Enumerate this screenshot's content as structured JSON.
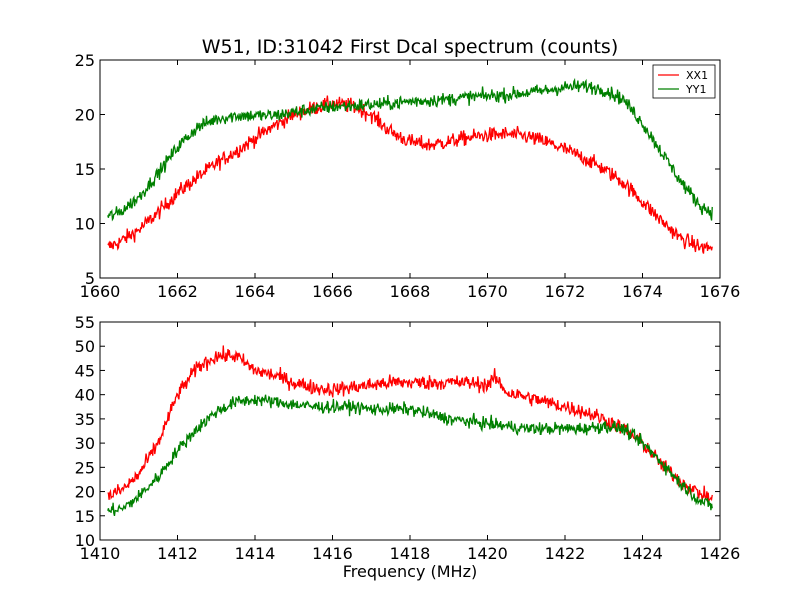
{
  "figure": {
    "title": "W51, ID:31042 First Dcal spectrum (counts)",
    "background": "#ffffff"
  },
  "chart_data": [
    {
      "type": "line",
      "title": "W51, ID:31042 First Dcal spectrum (counts)",
      "xlabel": "",
      "ylabel": "",
      "xlim": [
        1660,
        1676
      ],
      "ylim": [
        5,
        25
      ],
      "xticks": [
        "1660",
        "1662",
        "1664",
        "1666",
        "1668",
        "1670",
        "1672",
        "1674",
        "1676"
      ],
      "yticks": [
        "5",
        "10",
        "15",
        "20",
        "25"
      ],
      "grid": false,
      "legend": {
        "placement": "top-right",
        "entries": [
          "XX1",
          "YY1"
        ]
      },
      "series": [
        {
          "name": "XX1",
          "color": "#ff0000",
          "noise": 0.9,
          "x": [
            1660.2,
            1660.5,
            1661.0,
            1661.5,
            1662.0,
            1662.5,
            1663.0,
            1663.5,
            1664.0,
            1664.5,
            1665.0,
            1665.5,
            1666.0,
            1666.5,
            1667.0,
            1667.3,
            1667.6,
            1668.0,
            1668.5,
            1669.0,
            1669.5,
            1670.0,
            1670.5,
            1671.0,
            1671.5,
            1672.0,
            1672.5,
            1673.0,
            1673.5,
            1674.0,
            1674.5,
            1675.0,
            1675.5,
            1675.8
          ],
          "y": [
            7.8,
            8.3,
            9.4,
            11.0,
            12.8,
            14.2,
            15.5,
            16.6,
            17.8,
            19.0,
            20.0,
            20.6,
            21.0,
            20.8,
            20.0,
            19.0,
            18.2,
            17.5,
            17.2,
            17.5,
            17.9,
            18.1,
            18.2,
            18.0,
            17.5,
            16.8,
            16.0,
            15.0,
            13.8,
            12.0,
            10.2,
            8.6,
            7.8,
            7.8
          ]
        },
        {
          "name": "YY1",
          "color": "#008000",
          "noise": 0.8,
          "x": [
            1660.2,
            1660.5,
            1661.0,
            1661.5,
            1662.0,
            1662.5,
            1663.0,
            1663.5,
            1664.0,
            1664.5,
            1665.0,
            1665.5,
            1666.0,
            1666.5,
            1667.0,
            1667.5,
            1668.0,
            1668.5,
            1669.0,
            1669.5,
            1670.0,
            1670.5,
            1671.0,
            1671.5,
            1672.0,
            1672.5,
            1673.0,
            1673.5,
            1674.0,
            1674.5,
            1675.0,
            1675.5,
            1675.8
          ],
          "y": [
            10.6,
            11.0,
            12.4,
            14.6,
            17.0,
            18.8,
            19.6,
            19.9,
            19.9,
            19.9,
            20.2,
            20.5,
            20.7,
            20.8,
            20.9,
            21.0,
            21.2,
            21.3,
            21.4,
            21.6,
            21.7,
            21.8,
            22.0,
            22.2,
            22.5,
            22.6,
            22.3,
            21.4,
            19.2,
            16.5,
            13.8,
            11.6,
            11.0
          ]
        }
      ]
    },
    {
      "type": "line",
      "title": "",
      "xlabel": "Frequency (MHz)",
      "ylabel": "",
      "xlim": [
        1410,
        1426
      ],
      "ylim": [
        10,
        55
      ],
      "xticks": [
        "1410",
        "1412",
        "1414",
        "1416",
        "1418",
        "1420",
        "1422",
        "1424",
        "1426"
      ],
      "yticks": [
        "10",
        "15",
        "20",
        "25",
        "30",
        "35",
        "40",
        "45",
        "50",
        "55"
      ],
      "grid": false,
      "legend": null,
      "series": [
        {
          "color": "#ff0000",
          "noise": 2.0,
          "x": [
            1410.2,
            1410.6,
            1411.0,
            1411.5,
            1412.0,
            1412.5,
            1413.0,
            1413.5,
            1414.0,
            1414.5,
            1415.0,
            1415.5,
            1416.0,
            1416.5,
            1417.0,
            1417.5,
            1418.0,
            1418.5,
            1419.0,
            1419.5,
            1420.0,
            1420.2,
            1420.5,
            1421.0,
            1421.5,
            1422.0,
            1422.5,
            1423.0,
            1423.5,
            1424.0,
            1424.5,
            1425.0,
            1425.5,
            1425.8
          ],
          "y": [
            19.0,
            20.5,
            23.5,
            30.0,
            40.0,
            45.5,
            48.0,
            48.0,
            45.0,
            44.0,
            42.5,
            41.5,
            41.0,
            41.5,
            42.0,
            42.5,
            42.5,
            42.5,
            42.5,
            42.5,
            42.0,
            43.5,
            40.5,
            39.5,
            38.5,
            37.5,
            36.5,
            35.0,
            33.0,
            30.0,
            25.5,
            22.0,
            19.5,
            18.5
          ]
        },
        {
          "color": "#008000",
          "noise": 1.7,
          "x": [
            1410.2,
            1410.6,
            1411.0,
            1411.5,
            1412.0,
            1412.5,
            1413.0,
            1413.5,
            1414.0,
            1414.5,
            1415.0,
            1415.5,
            1416.0,
            1416.5,
            1417.0,
            1417.5,
            1418.0,
            1418.5,
            1419.0,
            1419.5,
            1420.0,
            1420.5,
            1421.0,
            1421.5,
            1422.0,
            1422.5,
            1423.0,
            1423.5,
            1424.0,
            1424.5,
            1425.0,
            1425.5,
            1425.8
          ],
          "y": [
            16.0,
            16.5,
            19.0,
            23.0,
            28.5,
            33.0,
            36.5,
            38.5,
            39.0,
            38.5,
            38.0,
            37.5,
            37.5,
            37.5,
            37.0,
            37.0,
            37.0,
            36.0,
            35.0,
            34.5,
            34.0,
            33.5,
            33.0,
            33.0,
            33.0,
            33.0,
            33.5,
            33.0,
            30.0,
            26.0,
            21.5,
            18.0,
            17.0
          ]
        }
      ]
    }
  ]
}
